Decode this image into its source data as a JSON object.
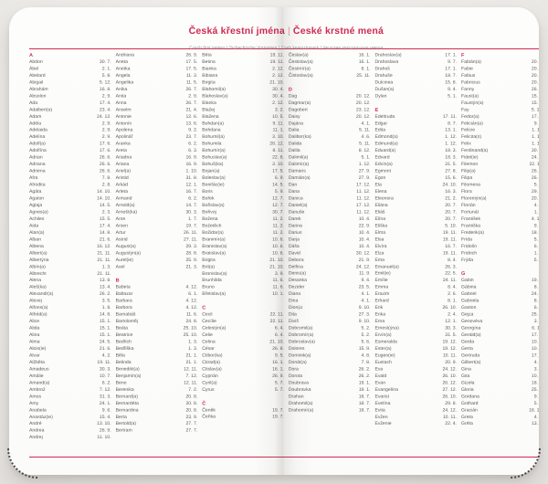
{
  "photo": {
    "accent_color": "#cf2a52",
    "text_color": "#5d5d5d",
    "backdrop_color": "#eceae7",
    "page_color": "#fcfcfb"
  },
  "header": {
    "title_primary": "Česká křestní jména",
    "title_separator": "|",
    "title_secondary": "České krstné mená",
    "subtitle": "Czech first names | Tschechische Vornamen | Cseh keresztnevek | Чешские крестильные имена"
  },
  "pages": [
    {
      "columns": [
        [
          "#A",
          "Abdon|30. 7.",
          "Ábel|2. 1.",
          "Abelard|5. 8.",
          "Abigail|5. 12.",
          "Abrahám|16. 8.",
          "Absolon|2. 9.",
          "Ada|17. 4.",
          "Adalbert(a)|23. 4.",
          "Adam|24. 12.",
          "Adéla|2. 9.",
          "Adelaida|2. 9.",
          "Adelína|2. 9.",
          "Adolf(a)|17. 6.",
          "Adolfína|17. 6.",
          "Adrian|26. 6.",
          "Adriana|26. 6.",
          "Adriena|26. 6.",
          "Afra|7. 8.",
          "Afrodita|2. 8.",
          "Agáta|14. 10.",
          "Agaton|14. 10.",
          "Aglaja|14. 5.",
          "Agnes(a)|2. 3.",
          "Achiles|15. 5.",
          "Aida|17. 4.",
          "Alan(a)|14. 8.",
          "Alban|21. 6.",
          "Albena|16. 12.",
          "Albert(a)|21. 11.",
          "Albertýna|21. 11.",
          "Albín(a)|1. 3.",
          "Albrecht|21. 11.",
          "Alena|13. 8.",
          "Aleš(ka)|13. 4.",
          "Alexandr(a)|26. 2.",
          "Alexej|3. 5.",
          "Alfons(a)|1. 8.",
          "Alfréd(a)|14. 8.",
          "Alice|15. 1.",
          "Alida|15. 1.",
          "Alina|15. 1.",
          "Alma|24. 5.",
          "Alois(ie)|21. 6.",
          "Alvar|4. 2.",
          "Alžběta|19. 11.",
          "Amadeus|30. 3.",
          "Amálie|10. 7.",
          "Amand(a)|6. 2.",
          "Ambrož|7. 12.",
          "Amos|31. 3.",
          "Amy|24. 1.",
          "Anabela|9. 6.",
          "Anastáz(ie)|15. 4.",
          "André|13. 10.",
          "Andrea|26. 9.",
          "Andrej|11. 10."
        ],
        [
          "Andriana|26. 9.",
          "Aneta|17. 5.",
          "Anetka|17. 5.",
          "Angela|11. 3.",
          "Angelika|11. 5.",
          "Anika|26. 7.",
          "Anita|2. 9.",
          "Anna|26. 7.",
          "Anselm|21. 4.",
          "Antonie|12. 6.",
          "Antonín|13. 6.",
          "Apolena|9. 2.",
          "Apolinář|23. 7.",
          "Aranka|6. 2.",
          "Areta|6. 3.",
          "Ariadna|16. 9.",
          "Ariana|16. 9.",
          "Ariel(a)|1. 10.",
          "Aristid|31. 8.",
          "Arkád|12. 1.",
          "Arleta|16. 7.",
          "Armand|6. 2.",
          "Arnold(a)|14. 7.",
          "Arnošt(ka)|30. 3.",
          "Aron|1. 7.",
          "Arsen|19. 7.",
          "Artur|26. 11.",
          "Astrid|27. 11.",
          "August(a)|29. 3.",
          "Augustýn(a)|28. 8.",
          "Aurel(ie)|25. 9.",
          "Axel|21. 3.",
          "#B",
          "Babeta|4. 12.",
          "Baltazar|6. 1.",
          "Barbara|4. 12.",
          "Barbora|4. 12.",
          "Barnabáš|11. 6.",
          "Bartoloměj|24. 8.",
          "Beáta|25. 10.",
          "Beatrice|25. 10.",
          "Bedřich|1. 3.",
          "Bedřiška|1. 3.",
          "Běla|21. 1.",
          "Belinda|21. 1.",
          "Benedikt(a)|12. 11.",
          "Benjamín(a)|7. 12.",
          "Beno|12. 11.",
          "Berenika|7. 2.",
          "Bernard(a)|20. 8.",
          "Bernardéta|20. 8.",
          "Bernardina|20. 8.",
          "Berta|23. 9.",
          "Bertold(a)|27. 7.",
          "Bertram|27. 7."
        ],
        [
          "Běta|19. 11.",
          "Betina|19. 11.",
          "Bianka|2. 12.",
          "Bibiana|2. 12.",
          "Birgita|21. 10.",
          "Blahomil(a)|30. 4.",
          "Blahoslav(a)|30. 4.",
          "Blanka|2. 12.",
          "Blažej|3. 2.",
          "Blažena|10. 5.",
          "Bohdan(a)|9. 11.",
          "Bohdana|11. 1.",
          "Bohumil(a)|3. 10.",
          "Bohumila|28. 12.",
          "Bohumír(a)|8. 11.",
          "Bohuslav(a)|22. 8.",
          "Bohuš(ka)|3. 10.",
          "Bojan(a)|17. 5.",
          "Boleslav(a)|6. 9.",
          "Bonifác(ie)|14. 5.",
          "Boris|5. 9.",
          "Bořek|12. 7.",
          "Bořislav(a)|12. 7.",
          "Bořivoj|30. 7.",
          "Božena|11. 2.",
          "Božetěch|11. 2.",
          "Božidar(a)|11. 2.",
          "Branimír(a)|10. 6.",
          "Branislav(a)|10. 6.",
          "Bratislav(a)|10. 6.",
          "Brigita|21. 10.",
          "Brit(a)|21. 10.",
          "Bronislav(a)|3. 9.",
          "Brunhilda|11. 6.",
          "Bruno|11. 6.",
          "Břetislav(a)|10. 1.",
          "#C",
          "Cecil|22. 11.",
          "Cecílie|22. 11.",
          "Celestýn(a)|6. 4.",
          "Celie|6. 4.",
          "Celina|21. 10.",
          "César|26. 8.",
          "Ctibor(ka)|9. 5.",
          "Ctirad(a)|16. 1.",
          "Ctislav(a)|16. 1.",
          "Cyprián|26. 9.",
          "Cyril(a)|5. 7.",
          "Cyrus|5. 7.",
          "#Č",
          "Čeněk|19. 7.",
          "Čeňka|19. 7."
        ],
        [
          "Česlav(a)|16. 1.",
          "Čestislav(a)|16. 1.",
          "Čestmír(a)|8. 1.",
          "Čistoslav(a)|25. 11.",
          "#D",
          "Dag|20. 12.",
          "Dagmar(a)|20. 12.",
          "Dagobert|23. 12.",
          "Daisy|20. 12.",
          "Dajána|4. 1.",
          "Dalia|5. 11.",
          "Dalibor(ka)|4. 6.",
          "Dalida|5. 11.",
          "Dalila|8. 12.",
          "Dalimil(a)|5. 1.",
          "Dalimír(a)|1. 12.",
          "Damaris|27. 9.",
          "Damián(a)|27. 9.",
          "Dan|17. 12.",
          "Dana|11. 12.",
          "Danica|11. 12.",
          "Daniel(a)|17. 12.",
          "Danuše|11. 12.",
          "Darek|10. 4.",
          "Darina|22. 9.",
          "Darius|10. 4.",
          "Darja|10. 4.",
          "Dáša|10. 4.",
          "David|30. 12.",
          "Debora|21. 9.",
          "Delfína|24. 12.",
          "Denis(a)|11. 9.",
          "Desanka|9. 4.",
          "Dezider|23. 5.",
          "Diana|4. 1.",
          "Dina|4. 1.",
          "Dionýz|9. 10.",
          "Dita|27. 3.",
          "Diviš|9. 10.",
          "Dobromil(a)|5. 2.",
          "Dobromír(a)|5. 2.",
          "Dobroslav(a)|5. 6.",
          "Dolores|15. 9.",
          "Dominik(a)|4. 8.",
          "Donát(a)|7. 8.",
          "Dora|26. 2.",
          "Dorota|26. 2.",
          "Doubrava|19. 1.",
          "Doubravka|19. 1.",
          "Drahan|18. 7.",
          "Drahomil(a)|18. 7.",
          "Drahomír(a)|18. 7."
        ],
        [
          "Drahoslav(a)|17. 1.",
          "Drahoslava|9. 7.",
          "Drahoš|17. 1.",
          "Drahuše|18. 7.",
          "Dulcinea|15. 8.",
          "Dušan(a)|9. 4.",
          "Dylan|5. 1.",
          "#E",
          "Edeltruda|17. 11.",
          "Edgar|8. 7.",
          "Edita|13. 1.",
          "Edmond(a)|1. 12.",
          "Edmund(a)|1. 12.",
          "Eduard(a)|18. 3.",
          "Edvard|18. 3.",
          "Edvín(a)|31. 5.",
          "Egmont|27. 8.",
          "Egon|15. 6.",
          "Ela|24. 10.",
          "Elena|16. 3.",
          "Eleonora|21. 2.",
          "Eliána|20. 7.",
          "Eliáš|20. 7.",
          "Elína|20. 7.",
          "Eliška|5. 10.",
          "Elma|19. 11.",
          "Elsa|19. 11.",
          "Elvíra|16. 7.",
          "Elza|19. 11.",
          "Ema|8. 4.",
          "Emanuel(a)|26. 3.",
          "Emil(ie)|22. 5.",
          "Emílie|24. 11.",
          "Emma|8. 4.",
          "Erazim|2. 6.",
          "Erhard|8. 1.",
          "Erik|26. 10.",
          "Erika|2. 4.",
          "Erna|12. 1.",
          "Ernest(ýna)|30. 3.",
          "Ervín(a)|31. 5.",
          "Esmeralda|19. 12.",
          "Ester(a)|19. 12.",
          "Eugen(ie)|10. 11.",
          "Eustach|20. 9.",
          "Eva|24. 12.",
          "Evald|26. 10.",
          "Evan|26. 12.",
          "Evangelína|27. 12.",
          "Evarist|26. 10.",
          "Evelína|29. 8.",
          "Evita|24. 12.",
          "Evžen|10. 11.",
          "Evženie|22. 4."
        ],
        [
          "#F",
          "Fabián(a)|20. 1.",
          "Fabie|20. 1.",
          "Fabius|20. 1.",
          "Fabricius|20. 8.",
          "Fanny|26. 9.",
          "Faust(a)|15. 2.",
          "Faustýn(a)|15. 2.",
          "Fay|5. 10.",
          "Fedor(a)|17. 2.",
          "Felicián(a)|9. 6.",
          "Felície|1. 11.",
          "Felicita(s)|1. 11.",
          "Felix|1. 11.",
          "Ferdinand(a)|30. 5.",
          "Fidel(ie)|24. 4.",
          "Filemon|22. 11.",
          "Filip(a)|26. 5.",
          "Filipa|26. 5.",
          "Filomena|5. 7.",
          "Flora|29. 7.",
          "Florentýn(a)|20. 6.",
          "Florián|4. 5.",
          "Fortunát|1. 6.",
          "František|4. 10.",
          "Františka|9. 3.",
          "Frederik(a)|18. 7.",
          "Frída|5. 3.",
          "Fridolín|6. 3.",
          "Fridrich|1. 3.",
          "Frýda|5. 3.",
          "#G",
          "Gabin|19. 2.",
          "Gábina|8. 3.",
          "Gabriel|24. 3.",
          "Gabriela|8. 3.",
          "Gaston|6. 2.",
          "Gejza|25. 6.",
          "Genovéva|3. 1.",
          "Georgína|6. 11.",
          "Gerald(a)|17. 8.",
          "Gerda|10. 9.",
          "Gerta|10. 9.",
          "Gertruda|17. 3.",
          "Gilbert(a)|4. 2.",
          "Gina|3. 1.",
          "Gita|10. 6.",
          "Gizela|18. 2.",
          "Gloria|25. 3.",
          "Gordana|9. 9.",
          "Gothard|5. 5.",
          "Gracián|18. 12.",
          "Greta|4. 9.",
          "Gréta|13. 7."
        ]
      ]
    },
    {
      "columns": [
        [
          "Gudrun|16. 1.",
          "Gunter|9. 10.",
          "Gustav(a)|2. 8.",
          "Gustýna|2. 8.",
          "Gvendolína|21. 1.",
          "#H",
          "Hana|15. 8.",
          "Hanuš|6. 10.",
          "Harald|1. 7.",
          "Harold|1. 7.",
          "Haštal|26. 3.",
          "Havel|16. 10.",
          "Heda|17. 10.",
          "Hedvika|17. 10.",
          "Hektor|2. 6.",
          "Helena|18. 8.",
          "Helga|18. 8.",
          "Helmut|29. 3.",
          "Henrieta|15. 7.",
          "Henrik(a)|15. 7.",
          "Herbert(a)|16. 3.",
          "Heřman(a)|7. 4.",
          "Hermína|7. 4.",
          "Herta|14. 9.",
          "Hilar|14. 1.",
          "Hilda|18. 3.",
          "Hildegarda|17. 9.",
          "Homér|22. 11.",
          "Honorát(a)|11. 5.",
          "Horác|22. 11.",
          "Horymír|29. 2.",
          "Hortenzie|24. 10.",
          "Hubert(a)|3. 11.",
          "Hugo|1. 4.",
          "Hynek|1. 2.",
          "#CH",
          "Charlota|27. 10.",
          "Chrudoš|5. 3.",
          "#I",
          "Ida|15. 3.",
          "Ignác|31. 7.",
          "Ignácie|31. 7.",
          "Igor|1. 10.",
          "Ila|15. 3.",
          "Ilja|20. 7.",
          "Ilona|20. 1.",
          "Ilsa|20. 1.",
          "Ines|21. 1.",
          "Ingeborg|27. 1.",
          "Ingrid|27. 1.",
          "Inka|27. 1.",
          "Inocenc|28. 12."
        ],
        [
          "Irena|16. 4.",
          "Irenej|16. 4.",
          "Iris|16. 4.",
          "Irma|10. 9.",
          "Isabel(a)|11. 4.",
          "Iva|1. 12.",
          "Ivan|25. 6.",
          "Ivana|4. 4.",
          "Iveta|7. 6.",
          "Ivo|19. 5.",
          "Ivona|23. 3.",
          "Ivor|19. 5.",
          "Izabela|11. 4.",
          "Izák|16. 8.",
          "Izidor(a)|4. 4.",
          "Izolda|6. 7.",
          "#J",
          "Jacek|17. 8.",
          "Jáchym|16. 8.",
          "Jadranka|4. 3.",
          "Jakub(a)|25. 7.",
          "Jan|24. 6.",
          "Jana|24. 5.",
          "Jarmil(a)|2. 6.",
          "Jarmila|4. 2.",
          "Jarolím|30. 9.",
          "Jaromír(a)|24. 9.",
          "Jaroslav(a)|27. 4.",
          "Jasmína|1. 6.",
          "Jasna|1. 6.",
          "Jeremiáš|1. 5.",
          "Jeroným|30. 9.",
          "Jindra|15. 7.",
          "Jindřich|15. 7.",
          "Jindřiška|4. 9.",
          "Jiljí|1. 9.",
          "Jiří|24. 4.",
          "Jiřina|15. 2.",
          "Johan(a)|21. 8.",
          "Jolana|15. 9.",
          "Jonáš|27. 9.",
          "Josef|19. 3.",
          "Josefína|19. 3.",
          "Judita|29. 12.",
          "Julián(a)|9. 1.",
          "Julie|10. 12.",
          "Julius|12. 4.",
          "Justýn(a)|7. 10.",
          "Juta|29. 12.",
          "#K",
          "Kajetán(a)|7. 8.",
          "Kamil(a)|3. 3.",
          "Kamila|31. 5."
        ],
        [
          "Karel|4. 11.",
          "Karin(a)|2. 1.",
          "Karla|4. 11.",
          "Karmela|16. 7.",
          "Karmen|16. 7.",
          "Karolína|14. 7.",
          "Kasandra|25. 11.",
          "Kateřina|25. 11.",
          "Katrin|25. 11.",
          "Kazi|5. 3.",
          "Kazimír(a)|5. 3.",
          "Kilián|8. 7.",
          "Kim|5. 10.",
          "Kira|5. 10.",
          "Klára|12. 8.",
          "Klarisa|12. 8.",
          "Klaudie|5. 5.",
          "Klaudius|5. 5.",
          "Klement(ýna)|23. 11.",
          "Kleopatra|19. 10.",
          "Kliment|23. 11.",
          "Klotylda|3. 6.",
          "Kolja|13. 10.",
          "Koloman|13. 10.",
          "Konrád|26. 11.",
          "Konstancie|21. 5.",
          "Konstantin|21. 5.",
          "Kordula|22. 10.",
          "Kornel(ie)|16. 9.",
          "Kosma|26. 9.",
          "Kristián(a)|5. 8.",
          "Kristina|24. 7.",
          "Kristýna|24. 7.",
          "Kryšpín|25. 10.",
          "Kryštof|18. 9.",
          "Kunhuta|9. 3.",
          "Kurt|6. 11.",
          "Kvido|31. 3.",
          "Kvirin|30. 3.",
          "Květa|20. 6.",
          "Květoslav(a)|4. 5.",
          "Květoslava|8. 12.",
          "Květuše|20. 6.",
          "#L",
          "Lada|7. 8.",
          "Ladislav(a)|27. 6.",
          "Lambert|17. 9.",
          "Lara|26. 3.",
          "Larisa|26. 3.",
          "Lars|26. 3.",
          "Laura|1. 6.",
          "Laurenc|10. 8.",
          "Laurencie|1. 6."
        ],
        [
          "Lea|22. 3.",
          "Leander|27. 2.",
          "Lejla|22. 3.",
          "Lena|21. 2.",
          "Lenka|21. 2.",
          "Leo|19. 6.",
          "Leokadie|9. 12.",
          "Leona|22. 3.",
          "Leonard|6. 11.",
          "Leonid(a)|19. 6.",
          "Leonora|21. 2.",
          "Leontýna|6. 11.",
          "Leopold(a)|15. 11.",
          "Leoš|19. 6.",
          "Leticie|13. 3.",
          "Liana|25. 2.",
          "Liběna|6. 11.",
          "Libor(a)|23. 7.",
          "Liboslav(a)|23. 7.",
          "Libuše|10. 7.",
          "Lidmila|16. 9.",
          "Lilie|25. 2.",
          "Lilien|25. 2.",
          "Liliana|25. 2.",
          "Linda|1. 9.",
          "Livie|13. 11.",
          "Ljuba|16. 2.",
          "Lola|26. 2.",
          "Lorena|10. 12.",
          "Loreta|10. 12.",
          "Lubomír(a)|28. 6.",
          "Lubor(ka)|13. 9.",
          "Luboš|16. 7.",
          "Lucián|7. 1.",
          "Lucie|13. 12.",
          "Luděk|26. 8.",
          "Ludiše|16. 9.",
          "Ludmila|16. 9.",
          "Ludomír(a)|28. 6.",
          "Ludvík(a)|19. 8.",
          "Luisa|21. 6.",
          "Lukáš|18. 10.",
          "Lukrécie|7. 3.",
          "Lumír|28. 2.",
          "Lýdie|14. 12.",
          "#M",
          "Mabel|12. 9.",
          "Magda|22. 7.",
          "Magdaléna|22. 7.",
          "Magnus|6. 9.",
          "Mahulena|17. 11.",
          "Maja|12. 8.",
          "Mája|12. 8."
        ],
        [
          "Makar|19. 1.",
          "Malvína|28. 1.",
          "Manfred|28. 1.",
          "Manon|12. 9.",
          "Manuel(a)|26. 3.",
          "Marcel(a)|12. 10.",
          "Marcela|20. 4.",
          "Marek|25. 4.",
          "Margareta|13. 7.",
          "Margita|13. 7.",
          "Marián|25. 3.",
          "Mariana|8. 9.",
          "Marie|12. 9.",
          "Marieta|12. 9.",
          "Marika|31. 1.",
          "Marina|10. 10.",
          "Mario|19. 1.",
          "Marius|19. 1.",
          "Marko|25. 4.",
          "Markéta|13. 7.",
          "Marlena|29. 7.",
          "Marta|29. 7.",
          "Martin(a)|11. 11.",
          "Martina|17. 7.",
          "Matěj|24. 2.",
          "Matouš|21. 9.",
          "Matyáš|24. 2.",
          "Matylda|14. 3.",
          "Max|29. 5.",
          "Maxim(a)|29. 5.",
          "Maxmilián(a)|29. 5.",
          "Mečislav(a)|1. 1.",
          "Medard|8. 6.",
          "Mechtilda|14. 3.",
          "Melánie|31. 12.",
          "Melichar|6. 1.",
          "Melinda|24. 5.",
          "Melisa|24. 5.",
          "Mercedes|24. 9.",
          "Metoděj|5. 7.",
          "Michael(a)|29. 9.",
          "Michaela|19. 10.",
          "Michal|29. 9.",
          "Mikoláš|6. 12.",
          "Mikuláš|6. 12.",
          "Milada|8. 2.",
          "Milan(a)|18. 6.",
          "Milena|24. 1.",
          "Milivoj|25. 1.",
          "Miloslav(a)|18. 12.",
          "Miloš|25. 1.",
          "Milota|25. 1.",
          "Miluše|3. 8."
        ],
        [
          "Minerva|5. 4.",
          "Mira|6. 3.",
          "Mirabela|16. 4.",
          "Miranda|11. 5.",
          "Mirek|6. 3.",
          "Mirela|15. 8.",
          "Miriam|5. 11.",
          "Mirka|5. 4.",
          "Miroslav|6. 3.",
          "Miroslava|5. 4.",
          "Mnislav(a)|6. 3.",
          "Mojmír(a)|10. 2.",
          "Mojžíš|4. 9.",
          "Mona|21. 5.",
          "Monika|21. 5.",
          "Moric|22. 9.",
          "Mstislav(a)|22. 9.",
          "Myrna|21. 5.",
          "#N",
          "Naďa|17. 9.",
          "Naděžda|17. 9.",
          "Nancy|26. 7.",
          "Naneta|26. 7.",
          "Napoleon|15. 8.",
          "Narcis(a)|29. 10.",
          "Natálie|21. 12.",
          "Natan|21. 12.",
          "Nataniel(a)|24. 8.",
          "Nataša|18. 5.",
          "Neklan|6. 9.",
          "Nela|2. 2.",
          "Nepomuk|16. 5.",
          "Nerea|25. 2.",
          "Nestor|26. 2.",
          "Nik(a)|20. 11.",
          "Nikita|6. 12.",
          "Nikodém(a)|3. 8.",
          "Nikol(a)|20. 11.",
          "Nikolas|6. 12.",
          "Nikoleta|20. 11.",
          "Nila|31. 5.",
          "Nina|24. 10.",
          "Noe|10. 11.",
          "Noel(a)|25. 12.",
          "Noemi|21. 9.",
          "Nora|8. 7.",
          "Norbert(a)|6. 6.",
          "Norma|6. 6.",
          "#O",
          "Odeta|20. 4.",
          "Odolen|18. 11.",
          "Ofélie|18. 11.",
          "Oktavián|13. 4."
        ]
      ]
    }
  ]
}
